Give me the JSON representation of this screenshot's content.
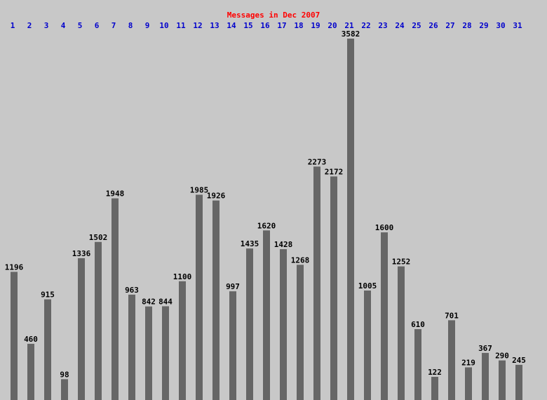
{
  "chart_data": {
    "type": "bar",
    "title": "Messages in Dec 2007",
    "categories": [
      "1",
      "2",
      "3",
      "4",
      "5",
      "6",
      "7",
      "8",
      "9",
      "10",
      "11",
      "12",
      "13",
      "14",
      "15",
      "16",
      "17",
      "18",
      "19",
      "20",
      "21",
      "22",
      "23",
      "24",
      "25",
      "26",
      "27",
      "28",
      "29",
      "30",
      "31"
    ],
    "values": [
      1196,
      460,
      915,
      98,
      1336,
      1502,
      1948,
      963,
      842,
      844,
      1100,
      1985,
      1926,
      997,
      1435,
      1620,
      1428,
      1268,
      2273,
      2172,
      3582,
      1005,
      1600,
      1252,
      610,
      122,
      701,
      219,
      367,
      290,
      245
    ],
    "color": "#666666",
    "title_color": "#ff0000",
    "category_color": "#0000cc"
  }
}
